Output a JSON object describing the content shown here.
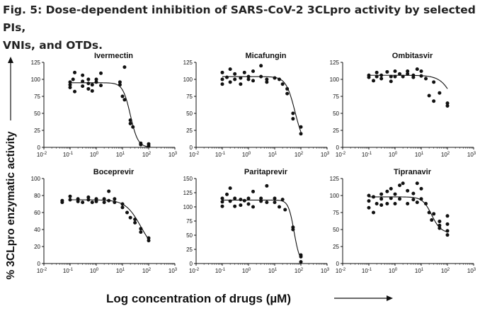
{
  "figure": {
    "title_line1": "Fig. 5: Dose-dependent inhibition of SARS-CoV-2 3CLpro activity by selected PIs,",
    "title_line2": "VNIs, and OTDs.",
    "ylabel": "% 3CLpro enzymatic activity",
    "xlabel": "Log concentration of drugs (µM)"
  },
  "colors": {
    "ink": "#111111",
    "title": "#222222"
  },
  "chart_data": [
    {
      "type": "scatter",
      "title": "Ivermectin",
      "xscale": "log",
      "xlim": [
        0.01,
        1000
      ],
      "xticks": [
        {
          "v": 0.01,
          "e": "-2"
        },
        {
          "v": 0.1,
          "e": "-1"
        },
        {
          "v": 1,
          "e": "0"
        },
        {
          "v": 10,
          "e": "1"
        },
        {
          "v": 100,
          "e": "2"
        },
        {
          "v": 1000,
          "e": "3"
        }
      ],
      "ylim": [
        0,
        125
      ],
      "yticks": [
        0,
        25,
        50,
        75,
        100,
        125
      ],
      "fit": {
        "top": 95,
        "bottom": 0,
        "ic50": 20,
        "hill": 3
      },
      "points": [
        [
          0.1,
          96
        ],
        [
          0.1,
          92
        ],
        [
          0.1,
          88
        ],
        [
          0.13,
          100
        ],
        [
          0.15,
          110
        ],
        [
          0.15,
          82
        ],
        [
          0.3,
          97
        ],
        [
          0.3,
          106
        ],
        [
          0.3,
          90
        ],
        [
          0.5,
          100
        ],
        [
          0.5,
          94
        ],
        [
          0.5,
          86
        ],
        [
          0.7,
          92
        ],
        [
          0.7,
          83
        ],
        [
          1,
          100
        ],
        [
          1,
          96
        ],
        [
          1.5,
          109
        ],
        [
          1.5,
          91
        ],
        [
          8,
          92
        ],
        [
          8,
          96
        ],
        [
          10,
          75
        ],
        [
          12,
          70
        ],
        [
          12,
          118
        ],
        [
          20,
          40
        ],
        [
          20,
          35
        ],
        [
          25,
          30
        ],
        [
          50,
          6
        ],
        [
          50,
          4
        ],
        [
          100,
          5
        ],
        [
          100,
          2
        ]
      ]
    },
    {
      "type": "scatter",
      "title": "Micafungin",
      "xscale": "log",
      "xlim": [
        0.01,
        1000
      ],
      "xticks": [
        {
          "v": 0.01,
          "e": "-2"
        },
        {
          "v": 0.1,
          "e": "-1"
        },
        {
          "v": 1,
          "e": "0"
        },
        {
          "v": 10,
          "e": "1"
        },
        {
          "v": 100,
          "e": "2"
        },
        {
          "v": 1000,
          "e": "3"
        }
      ],
      "ylim": [
        0,
        125
      ],
      "yticks": [
        0,
        25,
        50,
        75,
        100,
        125
      ],
      "fit": {
        "top": 104,
        "bottom": 0,
        "ic50": 60,
        "hill": 2.5
      },
      "points": [
        [
          0.1,
          110
        ],
        [
          0.1,
          100
        ],
        [
          0.1,
          93
        ],
        [
          0.15,
          103
        ],
        [
          0.2,
          115
        ],
        [
          0.2,
          96
        ],
        [
          0.3,
          108
        ],
        [
          0.3,
          100
        ],
        [
          0.5,
          102
        ],
        [
          0.5,
          93
        ],
        [
          0.7,
          110
        ],
        [
          1,
          100
        ],
        [
          1,
          104
        ],
        [
          1.5,
          112
        ],
        [
          1.5,
          98
        ],
        [
          3,
          104
        ],
        [
          3,
          120
        ],
        [
          5,
          100
        ],
        [
          5,
          96
        ],
        [
          10,
          102
        ],
        [
          15,
          100
        ],
        [
          20,
          93
        ],
        [
          30,
          86
        ],
        [
          30,
          79
        ],
        [
          50,
          50
        ],
        [
          50,
          42
        ],
        [
          100,
          30
        ],
        [
          100,
          20
        ]
      ]
    },
    {
      "type": "scatter",
      "title": "Ombitasvir",
      "xscale": "log",
      "xlim": [
        0.01,
        1000
      ],
      "xticks": [
        {
          "v": 0.01,
          "e": "-2"
        },
        {
          "v": 0.1,
          "e": "-1"
        },
        {
          "v": 1,
          "e": "0"
        },
        {
          "v": 10,
          "e": "1"
        },
        {
          "v": 100,
          "e": "2"
        },
        {
          "v": 1000,
          "e": "3"
        }
      ],
      "ylim": [
        0,
        125
      ],
      "yticks": [
        0,
        25,
        50,
        75,
        100,
        125
      ],
      "fit": {
        "top": 106,
        "bottom": 0,
        "ic50": 250,
        "hill": 1.6
      },
      "points": [
        [
          0.1,
          106
        ],
        [
          0.1,
          103
        ],
        [
          0.15,
          98
        ],
        [
          0.2,
          110
        ],
        [
          0.2,
          104
        ],
        [
          0.3,
          106
        ],
        [
          0.3,
          101
        ],
        [
          0.5,
          111
        ],
        [
          0.7,
          104
        ],
        [
          0.7,
          97
        ],
        [
          1,
          112
        ],
        [
          1,
          104
        ],
        [
          1.5,
          108
        ],
        [
          2,
          104
        ],
        [
          3,
          108
        ],
        [
          3,
          112
        ],
        [
          5,
          106
        ],
        [
          5,
          103
        ],
        [
          7,
          115
        ],
        [
          10,
          112
        ],
        [
          10,
          105
        ],
        [
          15,
          101
        ],
        [
          20,
          76
        ],
        [
          30,
          96
        ],
        [
          30,
          68
        ],
        [
          50,
          80
        ],
        [
          100,
          65
        ],
        [
          100,
          61
        ]
      ]
    },
    {
      "type": "scatter",
      "title": "Boceprevir",
      "xscale": "log",
      "xlim": [
        0.01,
        1000
      ],
      "xticks": [
        {
          "v": 0.01,
          "e": "-2"
        },
        {
          "v": 0.1,
          "e": "-1"
        },
        {
          "v": 1,
          "e": "0"
        },
        {
          "v": 10,
          "e": "1"
        },
        {
          "v": 100,
          "e": "2"
        },
        {
          "v": 1000,
          "e": "3"
        }
      ],
      "ylim": [
        0,
        100
      ],
      "yticks": [
        0,
        20,
        40,
        60,
        80,
        100
      ],
      "fit": {
        "top": 75,
        "bottom": 12,
        "ic50": 50,
        "hill": 1.5
      },
      "points": [
        [
          0.05,
          72
        ],
        [
          0.05,
          74
        ],
        [
          0.1,
          75
        ],
        [
          0.1,
          79
        ],
        [
          0.2,
          73
        ],
        [
          0.2,
          76
        ],
        [
          0.3,
          72
        ],
        [
          0.5,
          75
        ],
        [
          0.5,
          78
        ],
        [
          0.7,
          72
        ],
        [
          1,
          73
        ],
        [
          1,
          76
        ],
        [
          2,
          72
        ],
        [
          2,
          76
        ],
        [
          3,
          74
        ],
        [
          3,
          85
        ],
        [
          5,
          72
        ],
        [
          5,
          76
        ],
        [
          10,
          70
        ],
        [
          10,
          66
        ],
        [
          15,
          60
        ],
        [
          20,
          54
        ],
        [
          30,
          52
        ],
        [
          30,
          48
        ],
        [
          50,
          41
        ],
        [
          50,
          37
        ],
        [
          100,
          30
        ],
        [
          100,
          27
        ]
      ]
    },
    {
      "type": "scatter",
      "title": "Paritaprevir",
      "xscale": "log",
      "xlim": [
        0.01,
        1000
      ],
      "xticks": [
        {
          "v": 0.01,
          "e": "-2"
        },
        {
          "v": 0.1,
          "e": "-1"
        },
        {
          "v": 1,
          "e": "0"
        },
        {
          "v": 10,
          "e": "1"
        },
        {
          "v": 100,
          "e": "2"
        },
        {
          "v": 1000,
          "e": "3"
        }
      ],
      "ylim": [
        0,
        150
      ],
      "yticks": [
        0,
        25,
        50,
        75,
        100,
        125,
        150
      ],
      "fit": {
        "top": 112,
        "bottom": 0,
        "ic50": 55,
        "hill": 4
      },
      "points": [
        [
          0.1,
          115
        ],
        [
          0.1,
          109
        ],
        [
          0.1,
          101
        ],
        [
          0.15,
          122
        ],
        [
          0.2,
          133
        ],
        [
          0.2,
          110
        ],
        [
          0.3,
          115
        ],
        [
          0.3,
          101
        ],
        [
          0.5,
          113
        ],
        [
          0.5,
          103
        ],
        [
          0.7,
          111
        ],
        [
          1,
          115
        ],
        [
          1,
          105
        ],
        [
          1.5,
          127
        ],
        [
          1.5,
          100
        ],
        [
          3,
          110
        ],
        [
          3,
          115
        ],
        [
          5,
          137
        ],
        [
          5,
          108
        ],
        [
          10,
          108
        ],
        [
          10,
          115
        ],
        [
          15,
          100
        ],
        [
          20,
          113
        ],
        [
          25,
          95
        ],
        [
          50,
          64
        ],
        [
          50,
          60
        ],
        [
          100,
          15
        ],
        [
          100,
          12
        ],
        [
          100,
          3
        ]
      ]
    },
    {
      "type": "scatter",
      "title": "Tipranavir",
      "xscale": "log",
      "xlim": [
        0.01,
        1000
      ],
      "xticks": [
        {
          "v": 0.01,
          "e": "-2"
        },
        {
          "v": 0.1,
          "e": "-1"
        },
        {
          "v": 1,
          "e": "0"
        },
        {
          "v": 10,
          "e": "1"
        },
        {
          "v": 100,
          "e": "2"
        },
        {
          "v": 1000,
          "e": "3"
        }
      ],
      "ylim": [
        0,
        125
      ],
      "yticks": [
        0,
        25,
        50,
        75,
        100,
        125
      ],
      "fit": {
        "top": 98,
        "bottom": 45,
        "ic50": 25,
        "hill": 2.5
      },
      "points": [
        [
          0.1,
          100
        ],
        [
          0.1,
          92
        ],
        [
          0.1,
          82
        ],
        [
          0.15,
          98
        ],
        [
          0.15,
          75
        ],
        [
          0.2,
          88
        ],
        [
          0.3,
          102
        ],
        [
          0.3,
          95
        ],
        [
          0.3,
          86
        ],
        [
          0.5,
          106
        ],
        [
          0.5,
          88
        ],
        [
          0.7,
          110
        ],
        [
          0.7,
          96
        ],
        [
          1,
          102
        ],
        [
          1,
          88
        ],
        [
          1.5,
          115
        ],
        [
          1.5,
          95
        ],
        [
          2,
          118
        ],
        [
          3,
          107
        ],
        [
          3,
          88
        ],
        [
          5,
          103
        ],
        [
          5,
          94
        ],
        [
          7,
          118
        ],
        [
          7,
          90
        ],
        [
          10,
          110
        ],
        [
          10,
          95
        ],
        [
          15,
          88
        ],
        [
          20,
          75
        ],
        [
          25,
          64
        ],
        [
          30,
          73
        ],
        [
          50,
          62
        ],
        [
          50,
          56
        ],
        [
          50,
          52
        ],
        [
          100,
          70
        ],
        [
          100,
          58
        ],
        [
          100,
          48
        ],
        [
          100,
          42
        ]
      ]
    }
  ]
}
